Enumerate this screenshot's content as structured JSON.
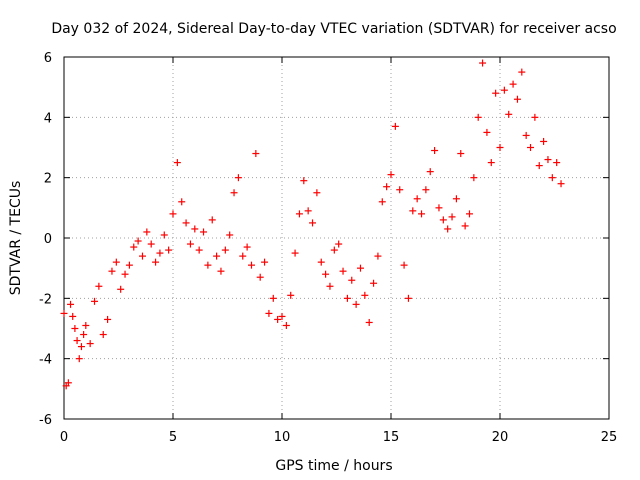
{
  "chart_data": {
    "type": "scatter",
    "title": "Day 032 of 2024, Sidereal Day-to-day VTEC variation (SDTVAR) for receiver acso",
    "xlabel": "GPS time / hours",
    "ylabel": "SDTVAR / TECUs",
    "xlim": [
      0,
      25
    ],
    "ylim": [
      -6,
      6
    ],
    "xticks": [
      0,
      5,
      10,
      15,
      20,
      25
    ],
    "yticks": [
      -6,
      -4,
      -2,
      0,
      2,
      4,
      6
    ],
    "grid": true,
    "marker": "+",
    "color": "#ff0000",
    "series": [
      {
        "name": "SDTVAR",
        "x": [
          0.0,
          0.1,
          0.2,
          0.3,
          0.4,
          0.5,
          0.6,
          0.7,
          0.8,
          0.9,
          1.0,
          1.2,
          1.4,
          1.6,
          1.8,
          2.0,
          2.2,
          2.4,
          2.6,
          2.8,
          3.0,
          3.2,
          3.4,
          3.6,
          3.8,
          4.0,
          4.2,
          4.4,
          4.6,
          4.8,
          5.0,
          5.2,
          5.4,
          5.6,
          5.8,
          6.0,
          6.2,
          6.4,
          6.6,
          6.8,
          7.0,
          7.2,
          7.4,
          7.6,
          7.8,
          8.0,
          8.2,
          8.4,
          8.6,
          8.8,
          9.0,
          9.2,
          9.4,
          9.6,
          9.8,
          10.0,
          10.2,
          10.4,
          10.6,
          10.8,
          11.0,
          11.2,
          11.4,
          11.6,
          11.8,
          12.0,
          12.2,
          12.4,
          12.6,
          12.8,
          13.0,
          13.2,
          13.4,
          13.6,
          13.8,
          14.0,
          14.2,
          14.4,
          14.6,
          14.8,
          15.0,
          15.2,
          15.4,
          15.6,
          15.8,
          16.0,
          16.2,
          16.4,
          16.6,
          16.8,
          17.0,
          17.2,
          17.4,
          17.6,
          17.8,
          18.0,
          18.2,
          18.4,
          18.6,
          18.8,
          19.0,
          19.2,
          19.4,
          19.6,
          19.8,
          20.0,
          20.2,
          20.4,
          20.6,
          20.8,
          21.0,
          21.2,
          21.4,
          21.6,
          21.8,
          22.0,
          22.2,
          22.4,
          22.6,
          22.8
        ],
        "y": [
          -2.5,
          -4.9,
          -4.8,
          -2.2,
          -2.6,
          -3.0,
          -3.4,
          -4.0,
          -3.6,
          -3.2,
          -2.9,
          -3.5,
          -2.1,
          -1.6,
          -3.2,
          -2.7,
          -1.1,
          -0.8,
          -1.7,
          -1.2,
          -0.9,
          -0.3,
          -0.1,
          -0.6,
          0.2,
          -0.2,
          -0.8,
          -0.5,
          0.1,
          -0.4,
          0.8,
          2.5,
          1.2,
          0.5,
          -0.2,
          0.3,
          -0.4,
          0.2,
          -0.9,
          0.6,
          -0.6,
          -1.1,
          -0.4,
          0.1,
          1.5,
          2.0,
          -0.6,
          -0.3,
          -0.9,
          2.8,
          -1.3,
          -0.8,
          -2.5,
          -2.0,
          -2.7,
          -2.6,
          -2.9,
          -1.9,
          -0.5,
          0.8,
          1.9,
          0.9,
          0.5,
          1.5,
          -0.8,
          -1.2,
          -1.6,
          -0.4,
          -0.2,
          -1.1,
          -2.0,
          -1.4,
          -2.2,
          -1.0,
          -1.9,
          -2.8,
          -1.5,
          -0.6,
          1.2,
          1.7,
          2.1,
          3.7,
          1.6,
          -0.9,
          -2.0,
          0.9,
          1.3,
          0.8,
          1.6,
          2.2,
          2.9,
          1.0,
          0.6,
          0.3,
          0.7,
          1.3,
          2.8,
          0.4,
          0.8,
          2.0,
          4.0,
          5.8,
          3.5,
          2.5,
          4.8,
          3.0,
          4.9,
          4.1,
          5.1,
          4.6,
          5.5,
          3.4,
          3.0,
          4.0,
          2.4,
          3.2,
          2.6,
          2.0,
          2.5,
          1.8
        ]
      }
    ]
  }
}
